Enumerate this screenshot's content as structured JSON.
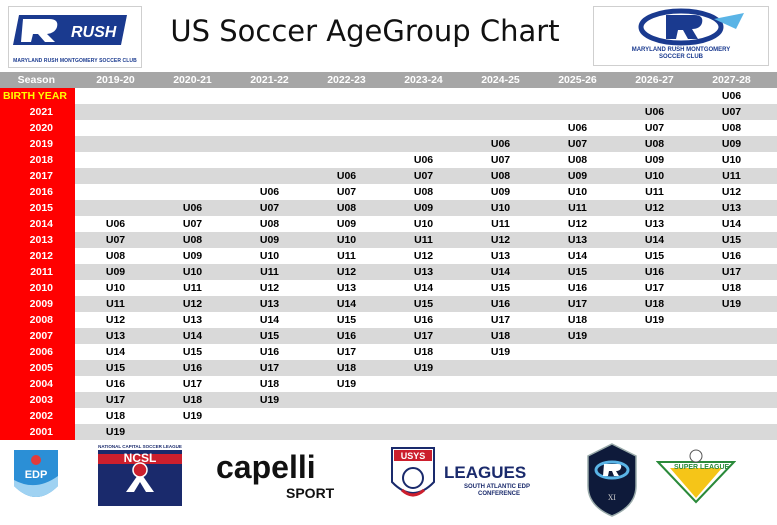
{
  "title": "US Soccer AgeGroup Chart",
  "logos": {
    "left_caption": "MARYLAND RUSH MONTGOMERY SOCCER CLUB",
    "left_wordmark": "RUSH",
    "right_caption_1": "MARYLAND RUSH MONTGOMERY",
    "right_caption_2": "SOCCER CLUB"
  },
  "table": {
    "season_label": "Season",
    "birth_year_label": "BIRTH YEAR",
    "seasons": [
      "2019-20",
      "2020-21",
      "2021-22",
      "2022-23",
      "2023-24",
      "2024-25",
      "2025-26",
      "2026-27",
      "2027-28"
    ],
    "birth_year_row": [
      "",
      "",
      "",
      "",
      "",
      "",
      "",
      "",
      "U06"
    ],
    "rows": [
      {
        "year": "2021",
        "cells": [
          "",
          "",
          "",
          "",
          "",
          "",
          "",
          "U06",
          "U07"
        ]
      },
      {
        "year": "2020",
        "cells": [
          "",
          "",
          "",
          "",
          "",
          "",
          "U06",
          "U07",
          "U08"
        ]
      },
      {
        "year": "2019",
        "cells": [
          "",
          "",
          "",
          "",
          "",
          "U06",
          "U07",
          "U08",
          "U09"
        ]
      },
      {
        "year": "2018",
        "cells": [
          "",
          "",
          "",
          "",
          "U06",
          "U07",
          "U08",
          "U09",
          "U10"
        ]
      },
      {
        "year": "2017",
        "cells": [
          "",
          "",
          "",
          "U06",
          "U07",
          "U08",
          "U09",
          "U10",
          "U11"
        ]
      },
      {
        "year": "2016",
        "cells": [
          "",
          "",
          "U06",
          "U07",
          "U08",
          "U09",
          "U10",
          "U11",
          "U12"
        ]
      },
      {
        "year": "2015",
        "cells": [
          "",
          "U06",
          "U07",
          "U08",
          "U09",
          "U10",
          "U11",
          "U12",
          "U13"
        ]
      },
      {
        "year": "2014",
        "cells": [
          "U06",
          "U07",
          "U08",
          "U09",
          "U10",
          "U11",
          "U12",
          "U13",
          "U14"
        ]
      },
      {
        "year": "2013",
        "cells": [
          "U07",
          "U08",
          "U09",
          "U10",
          "U11",
          "U12",
          "U13",
          "U14",
          "U15"
        ]
      },
      {
        "year": "2012",
        "cells": [
          "U08",
          "U09",
          "U10",
          "U11",
          "U12",
          "U13",
          "U14",
          "U15",
          "U16"
        ]
      },
      {
        "year": "2011",
        "cells": [
          "U09",
          "U10",
          "U11",
          "U12",
          "U13",
          "U14",
          "U15",
          "U16",
          "U17"
        ]
      },
      {
        "year": "2010",
        "cells": [
          "U10",
          "U11",
          "U12",
          "U13",
          "U14",
          "U15",
          "U16",
          "U17",
          "U18"
        ]
      },
      {
        "year": "2009",
        "cells": [
          "U11",
          "U12",
          "U13",
          "U14",
          "U15",
          "U16",
          "U17",
          "U18",
          "U19"
        ]
      },
      {
        "year": "2008",
        "cells": [
          "U12",
          "U13",
          "U14",
          "U15",
          "U16",
          "U17",
          "U18",
          "U19",
          ""
        ]
      },
      {
        "year": "2007",
        "cells": [
          "U13",
          "U14",
          "U15",
          "U16",
          "U17",
          "U18",
          "U19",
          "",
          ""
        ]
      },
      {
        "year": "2006",
        "cells": [
          "U14",
          "U15",
          "U16",
          "U17",
          "U18",
          "U19",
          "",
          "",
          ""
        ]
      },
      {
        "year": "2005",
        "cells": [
          "U15",
          "U16",
          "U17",
          "U18",
          "U19",
          "",
          "",
          "",
          ""
        ]
      },
      {
        "year": "2004",
        "cells": [
          "U16",
          "U17",
          "U18",
          "U19",
          "",
          "",
          "",
          "",
          ""
        ]
      },
      {
        "year": "2003",
        "cells": [
          "U17",
          "U18",
          "U19",
          "",
          "",
          "",
          "",
          "",
          ""
        ]
      },
      {
        "year": "2002",
        "cells": [
          "U18",
          "U19",
          "",
          "",
          "",
          "",
          "",
          "",
          ""
        ]
      },
      {
        "year": "2001",
        "cells": [
          "U19",
          "",
          "",
          "",
          "",
          "",
          "",
          "",
          ""
        ]
      }
    ]
  },
  "footer": {
    "edp": "EDP",
    "ncsl_top": "NATIONAL CAPITAL SOCCER LEAGUE",
    "ncsl": "NCSL",
    "capelli_1": "capelli",
    "capelli_2": "SPORT",
    "usys": "USYS",
    "leagues": "LEAGUES",
    "leagues_sub_1": "SOUTH ATLANTIC EDP",
    "leagues_sub_2": "CONFERENCE",
    "super": "SUPER",
    "league": "LEAGUE"
  },
  "colors": {
    "red": "#ff0000",
    "header_gray": "#a6a6a6",
    "row_shade": "#d9d9d9",
    "brand_blue": "#1a3a8f"
  }
}
